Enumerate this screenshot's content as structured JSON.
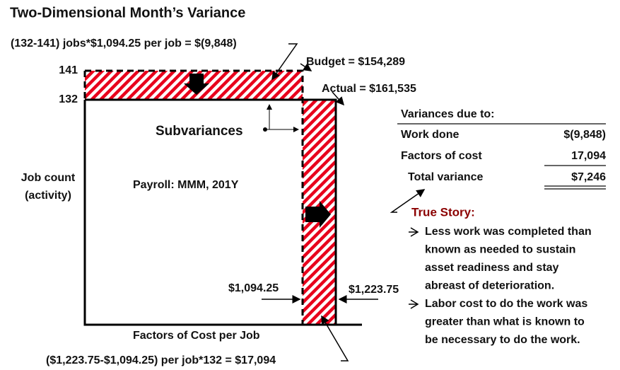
{
  "title": "Two-Dimensional Month’s Variance",
  "axis": {
    "y_high": "141",
    "y_low": "132",
    "y_label": [
      "Job count",
      "(activity)"
    ],
    "x_label": "Factors of Cost per Job",
    "x_left": "$1,094.25",
    "x_right": "$1,223.75"
  },
  "labels": {
    "work_formula": "(132-141) jobs*$1,094.25 per job = $(9,848)",
    "budget": "Budget = $154,289",
    "actual": "Actual = $161,535",
    "subvariances": "Subvariances",
    "payroll": "Payroll: MMM, 201Y",
    "cost_formula": "($1,223.75-$1,094.25) per job*132 = $17,094"
  },
  "table": {
    "header": "Variances due to:",
    "rows": [
      [
        "Work done",
        "$(9,848)"
      ],
      [
        "Factors of cost",
        "17,094"
      ],
      [
        "Total variance",
        "$7,246"
      ]
    ]
  },
  "story": {
    "title": "True Story:",
    "bullets": [
      [
        "Less work was completed than",
        "known as needed to sustain",
        "asset readiness and stay",
        "abreast of deterioration."
      ],
      [
        "Labor cost to do the work was",
        "greater than what is known to",
        "be necessary to do the work."
      ]
    ]
  }
}
